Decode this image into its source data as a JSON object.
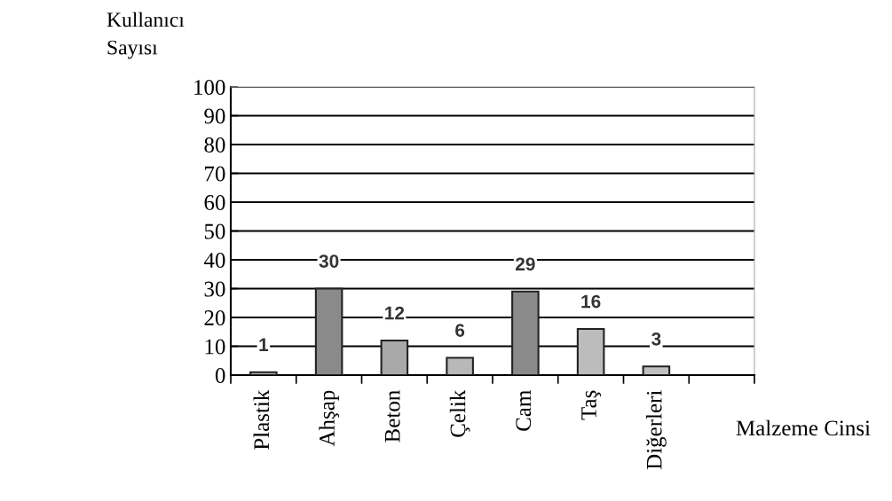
{
  "chart_data": {
    "type": "bar",
    "ylabel": "Kullanıcı\nSayısı",
    "xlabel": "Malzeme Cinsi",
    "categories": [
      "Plastik",
      "Ahşap",
      "Beton",
      "Çelik",
      "Cam",
      "Taş",
      "Diğerleri",
      null
    ],
    "values": [
      1,
      30,
      12,
      6,
      29,
      16,
      3,
      null
    ],
    "colors": [
      "#b0b0b0",
      "#8a8a8a",
      "#a8a8a8",
      "#b8b8b8",
      "#8a8a8a",
      "#bcbcbc",
      "#c0c0c0",
      "#c0c0c0"
    ],
    "ylim": [
      0,
      100
    ],
    "yticks": [
      0,
      10,
      20,
      30,
      40,
      50,
      60,
      70,
      80,
      90,
      100
    ],
    "grid": "y",
    "data_labels": true
  }
}
